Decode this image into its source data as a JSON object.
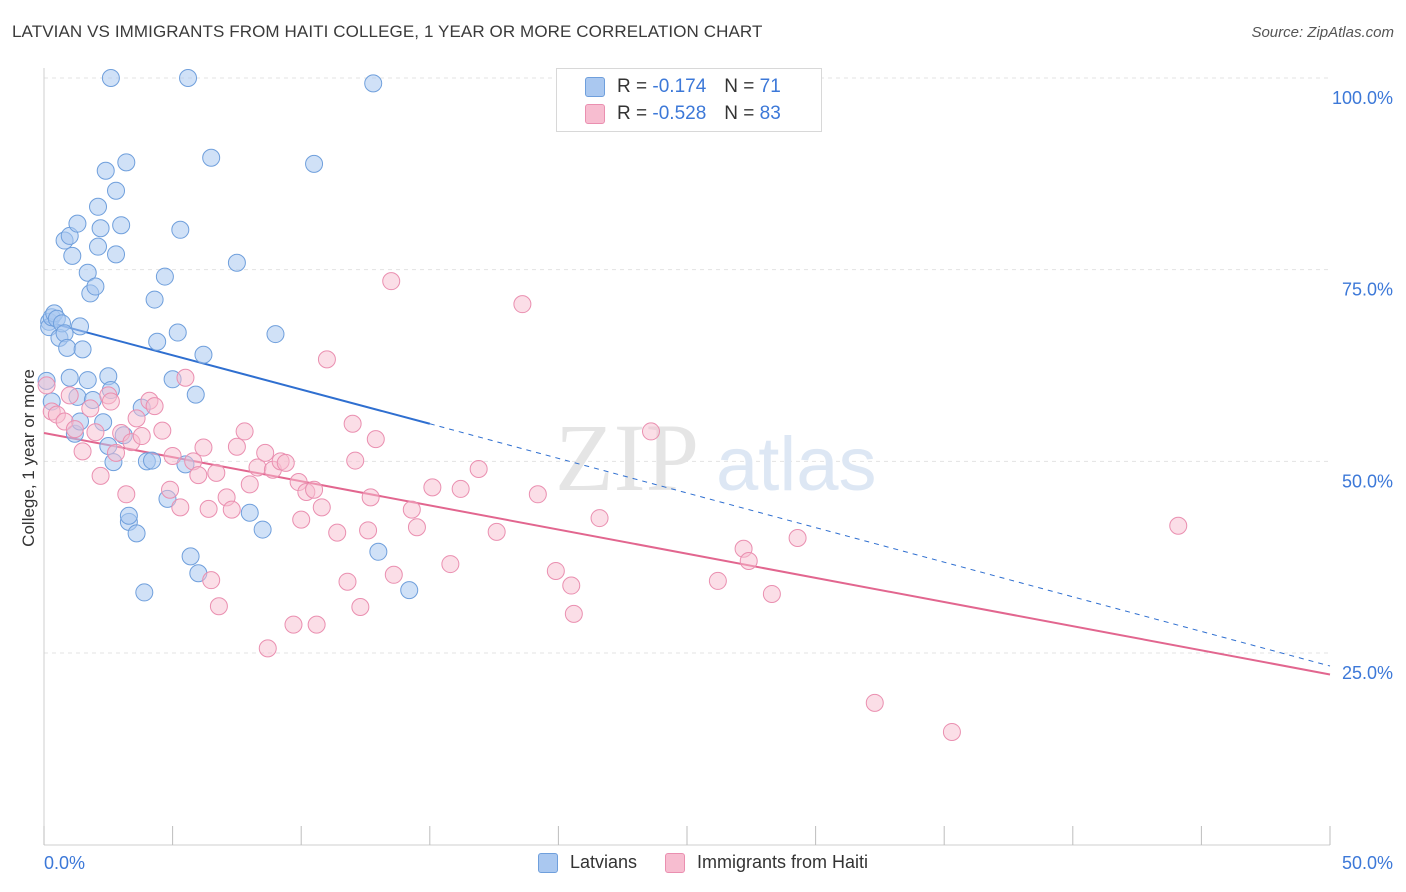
{
  "header": {
    "title": "LATVIAN VS IMMIGRANTS FROM HAITI COLLEGE, 1 YEAR OR MORE CORRELATION CHART",
    "source": "Source: ZipAtlas.com"
  },
  "watermark": {
    "zip": "ZIP",
    "atlas": "atlas"
  },
  "legend_stats": [
    {
      "r_label": "R =",
      "r_value": "-0.174",
      "n_label": "N =",
      "n_value": "71"
    },
    {
      "r_label": "R =",
      "r_value": "-0.528",
      "n_label": "N =",
      "n_value": "83"
    }
  ],
  "colors": {
    "latvian_fill": "#aac8f0",
    "latvian_stroke": "#6f9fdc",
    "latvian_line": "#2f6fd0",
    "haiti_fill": "#f7bdd0",
    "haiti_stroke": "#ea8fb0",
    "haiti_line": "#e2668f",
    "tick_text": "#3c78d8",
    "grid": "#e3e3e3"
  },
  "chart_data": {
    "type": "scatter",
    "title": "LATVIAN VS IMMIGRANTS FROM HAITI COLLEGE, 1 YEAR OR MORE CORRELATION CHART",
    "xlabel": "",
    "ylabel": "College, 1 year or more",
    "xlim": [
      0,
      50
    ],
    "ylim": [
      0,
      101
    ],
    "x_tick_labels": [
      "0.0%",
      "50.0%"
    ],
    "y_ticks": [
      25,
      50,
      75,
      100
    ],
    "y_tick_labels": [
      "25.0%",
      "50.0%",
      "75.0%",
      "100.0%"
    ],
    "grid": true,
    "legend_placement": "top-center",
    "series": [
      {
        "name": "Latvians",
        "trend": {
          "x": [
            0,
            15
          ],
          "y": [
            68.3,
            54.9
          ],
          "dashed_to": [
            50,
            23.3
          ]
        },
        "points": [
          [
            0.1,
            60.5
          ],
          [
            0.2,
            68.2
          ],
          [
            0.2,
            67.5
          ],
          [
            0.3,
            68.8
          ],
          [
            0.3,
            57.8
          ],
          [
            0.4,
            69.3
          ],
          [
            0.5,
            68.6
          ],
          [
            0.6,
            66.1
          ],
          [
            0.7,
            68.0
          ],
          [
            0.8,
            66.7
          ],
          [
            0.8,
            78.8
          ],
          [
            0.9,
            64.8
          ],
          [
            1.0,
            60.9
          ],
          [
            1.0,
            79.4
          ],
          [
            1.1,
            76.8
          ],
          [
            1.2,
            53.6
          ],
          [
            1.3,
            58.4
          ],
          [
            1.3,
            81.0
          ],
          [
            1.4,
            55.2
          ],
          [
            1.4,
            67.6
          ],
          [
            1.5,
            64.6
          ],
          [
            1.7,
            74.6
          ],
          [
            1.7,
            60.6
          ],
          [
            1.8,
            71.9
          ],
          [
            1.9,
            58.0
          ],
          [
            2.0,
            72.8
          ],
          [
            2.1,
            78.0
          ],
          [
            2.1,
            83.2
          ],
          [
            2.2,
            80.4
          ],
          [
            2.3,
            55.1
          ],
          [
            2.4,
            87.9
          ],
          [
            2.5,
            52.0
          ],
          [
            2.5,
            61.1
          ],
          [
            2.6,
            59.3
          ],
          [
            2.7,
            49.9
          ],
          [
            2.8,
            77.0
          ],
          [
            2.8,
            85.3
          ],
          [
            3.0,
            80.8
          ],
          [
            3.1,
            53.4
          ],
          [
            3.2,
            89.0
          ],
          [
            3.3,
            42.1
          ],
          [
            3.3,
            42.9
          ],
          [
            3.6,
            40.6
          ],
          [
            3.8,
            57.0
          ],
          [
            3.9,
            32.9
          ],
          [
            4.0,
            50.0
          ],
          [
            4.2,
            50.1
          ],
          [
            4.3,
            71.1
          ],
          [
            4.4,
            65.6
          ],
          [
            4.7,
            74.1
          ],
          [
            4.8,
            45.1
          ],
          [
            5.0,
            60.7
          ],
          [
            5.2,
            66.8
          ],
          [
            5.3,
            80.2
          ],
          [
            5.5,
            49.6
          ],
          [
            5.7,
            37.6
          ],
          [
            5.9,
            58.7
          ],
          [
            6.0,
            35.4
          ],
          [
            6.2,
            63.9
          ],
          [
            6.5,
            89.6
          ],
          [
            7.5,
            75.9
          ],
          [
            8.0,
            43.3
          ],
          [
            8.5,
            41.1
          ],
          [
            9.0,
            66.6
          ],
          [
            10.5,
            88.8
          ],
          [
            12.8,
            99.3
          ],
          [
            13.0,
            38.2
          ],
          [
            14.2,
            33.2
          ],
          [
            2.6,
            100.0
          ],
          [
            5.6,
            100.0
          ]
        ]
      },
      {
        "name": "Immigrants from Haiti",
        "trend": {
          "x": [
            0,
            50
          ],
          "y": [
            53.7,
            22.2
          ]
        },
        "points": [
          [
            0.1,
            59.9
          ],
          [
            0.3,
            56.5
          ],
          [
            0.5,
            56.1
          ],
          [
            0.8,
            55.2
          ],
          [
            1.0,
            58.6
          ],
          [
            1.2,
            54.2
          ],
          [
            1.5,
            51.3
          ],
          [
            1.8,
            56.9
          ],
          [
            2.0,
            53.8
          ],
          [
            2.2,
            48.1
          ],
          [
            2.5,
            58.6
          ],
          [
            2.6,
            57.8
          ],
          [
            2.8,
            51.1
          ],
          [
            3.0,
            53.7
          ],
          [
            3.2,
            45.7
          ],
          [
            3.4,
            52.5
          ],
          [
            3.6,
            55.6
          ],
          [
            3.8,
            53.3
          ],
          [
            4.1,
            57.9
          ],
          [
            4.3,
            57.2
          ],
          [
            4.6,
            54.0
          ],
          [
            4.9,
            46.3
          ],
          [
            5.0,
            50.7
          ],
          [
            5.3,
            44.0
          ],
          [
            5.5,
            60.9
          ],
          [
            5.8,
            50.0
          ],
          [
            6.0,
            48.2
          ],
          [
            6.2,
            51.8
          ],
          [
            6.4,
            43.8
          ],
          [
            6.5,
            34.5
          ],
          [
            6.7,
            48.5
          ],
          [
            6.8,
            31.1
          ],
          [
            7.1,
            45.3
          ],
          [
            7.3,
            43.7
          ],
          [
            7.5,
            51.9
          ],
          [
            7.8,
            53.9
          ],
          [
            8.0,
            47.0
          ],
          [
            8.3,
            49.2
          ],
          [
            8.6,
            51.1
          ],
          [
            8.7,
            25.6
          ],
          [
            8.9,
            48.9
          ],
          [
            9.2,
            50.0
          ],
          [
            9.4,
            49.8
          ],
          [
            9.7,
            28.7
          ],
          [
            9.9,
            47.3
          ],
          [
            10.0,
            42.4
          ],
          [
            10.2,
            46.0
          ],
          [
            10.5,
            46.3
          ],
          [
            10.6,
            28.7
          ],
          [
            10.8,
            44.0
          ],
          [
            11.0,
            63.3
          ],
          [
            11.4,
            40.7
          ],
          [
            11.8,
            34.3
          ],
          [
            12.0,
            54.9
          ],
          [
            12.1,
            50.1
          ],
          [
            12.3,
            31.0
          ],
          [
            12.6,
            41.0
          ],
          [
            12.7,
            45.3
          ],
          [
            12.9,
            52.9
          ],
          [
            13.5,
            73.5
          ],
          [
            13.6,
            35.2
          ],
          [
            14.3,
            43.7
          ],
          [
            14.5,
            41.4
          ],
          [
            15.1,
            46.6
          ],
          [
            15.8,
            36.6
          ],
          [
            16.2,
            46.4
          ],
          [
            16.9,
            49.0
          ],
          [
            17.6,
            40.8
          ],
          [
            18.6,
            70.5
          ],
          [
            19.2,
            45.7
          ],
          [
            19.9,
            35.7
          ],
          [
            20.5,
            33.8
          ],
          [
            20.6,
            30.1
          ],
          [
            21.6,
            42.6
          ],
          [
            23.6,
            53.9
          ],
          [
            26.2,
            34.4
          ],
          [
            27.2,
            38.6
          ],
          [
            27.4,
            37.0
          ],
          [
            28.3,
            32.7
          ],
          [
            29.3,
            40.0
          ],
          [
            32.3,
            18.5
          ],
          [
            35.3,
            14.7
          ],
          [
            44.1,
            41.6
          ]
        ]
      }
    ]
  }
}
